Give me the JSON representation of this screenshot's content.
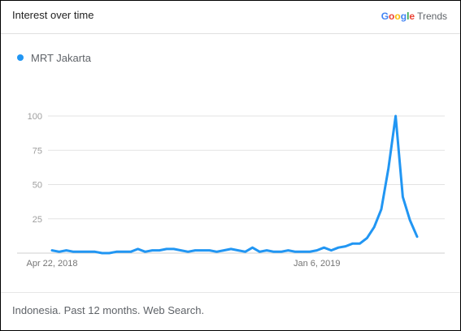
{
  "header": {
    "title": "Interest over time",
    "brand_google_letters": [
      {
        "ch": "G",
        "color": "#4285F4"
      },
      {
        "ch": "o",
        "color": "#EA4335"
      },
      {
        "ch": "o",
        "color": "#FBBC05"
      },
      {
        "ch": "g",
        "color": "#4285F4"
      },
      {
        "ch": "l",
        "color": "#34A853"
      },
      {
        "ch": "e",
        "color": "#EA4335"
      }
    ],
    "brand_trends": "Trends"
  },
  "footer": {
    "text": "Indonesia. Past 12 months. Web Search."
  },
  "chart_data": {
    "type": "line",
    "title": "",
    "xlabel": "",
    "ylabel": "",
    "ylim": [
      0,
      100
    ],
    "yticks": [
      25,
      50,
      75,
      100
    ],
    "grid": true,
    "legend": "top-left",
    "color": "#2196F3",
    "x_start": "Apr 22, 2018",
    "x_step_days": 7,
    "xtick_labels": [
      {
        "index": 0,
        "label": "Apr 22, 2018"
      },
      {
        "index": 37,
        "label": "Jan 6, 2019"
      }
    ],
    "series": [
      {
        "name": "MRT Jakarta",
        "values": [
          2,
          1,
          2,
          1,
          1,
          1,
          1,
          0,
          0,
          1,
          1,
          1,
          3,
          1,
          2,
          2,
          3,
          3,
          2,
          1,
          2,
          2,
          2,
          1,
          2,
          3,
          2,
          1,
          4,
          1,
          2,
          1,
          1,
          2,
          1,
          1,
          1,
          2,
          4,
          2,
          4,
          5,
          7,
          7,
          11,
          19,
          32,
          62,
          100,
          41,
          24,
          12
        ]
      }
    ]
  }
}
